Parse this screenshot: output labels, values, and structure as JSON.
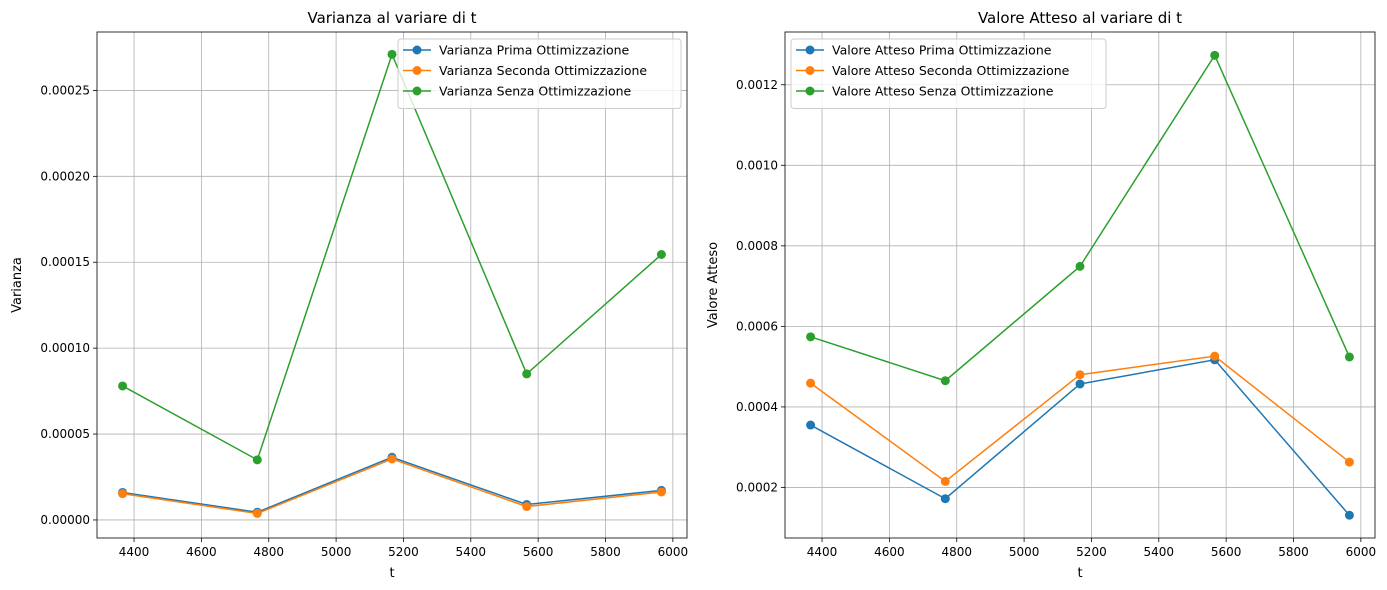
{
  "colors": {
    "series_1": "#1f77b4",
    "series_2": "#ff7f0e",
    "series_3": "#2ca02c",
    "grid": "#b0b0b0",
    "axes": "#000000"
  },
  "chart_data": [
    {
      "type": "line",
      "title": "Varianza al variare di t",
      "xlabel": "t",
      "ylabel": "Varianza",
      "x": [
        4366,
        4766,
        5166,
        5566,
        5966
      ],
      "xlim": [
        4290,
        6042
      ],
      "ylim": [
        -1.05e-05,
        0.000284
      ],
      "xticks": [
        4400,
        4600,
        4800,
        5000,
        5200,
        5400,
        5600,
        5800,
        6000
      ],
      "xtick_labels": [
        "4400",
        "4600",
        "4800",
        "5000",
        "5200",
        "5400",
        "5600",
        "5800",
        "6000"
      ],
      "yticks": [
        0,
        5e-05,
        0.0001,
        0.00015,
        0.0002,
        0.00025
      ],
      "ytick_labels": [
        "0.00000",
        "0.00005",
        "0.00010",
        "0.00015",
        "0.00020",
        "0.00025"
      ],
      "grid": true,
      "legend_position": "top-right",
      "series": [
        {
          "name": "Varianza Prima Ottimizzazione",
          "values": [
            1.6e-05,
            4.5e-06,
            3.65e-05,
            9e-06,
            1.72e-05
          ]
        },
        {
          "name": "Varianza Seconda Ottimizzazione",
          "values": [
            1.53e-05,
            3.8e-06,
            3.55e-05,
            7.8e-06,
            1.63e-05
          ]
        },
        {
          "name": "Varianza Senza Ottimizzazione",
          "values": [
            7.8e-05,
            3.5e-05,
            0.000271,
            8.5e-05,
            0.0001545
          ]
        }
      ]
    },
    {
      "type": "line",
      "title": "Valore Atteso al variare di t",
      "xlabel": "t",
      "ylabel": "Valore Atteso",
      "x": [
        4366,
        4766,
        5166,
        5566,
        5966
      ],
      "xlim": [
        4290,
        6042
      ],
      "ylim": [
        7.45e-05,
        0.001331
      ],
      "xticks": [
        4400,
        4600,
        4800,
        5000,
        5200,
        5400,
        5600,
        5800,
        6000
      ],
      "xtick_labels": [
        "4400",
        "4600",
        "4800",
        "5000",
        "5200",
        "5400",
        "5600",
        "5800",
        "6000"
      ],
      "yticks": [
        0.0002,
        0.0004,
        0.0006,
        0.0008,
        0.001,
        0.0012
      ],
      "ytick_labels": [
        "0.0002",
        "0.0004",
        "0.0006",
        "0.0008",
        "0.0010",
        "0.0012"
      ],
      "grid": true,
      "legend_position": "top-left",
      "series": [
        {
          "name": "Valore Atteso Prima Ottimizzazione",
          "values": [
            0.000355,
            0.000172,
            0.000457,
            0.000517,
            0.000131
          ]
        },
        {
          "name": "Valore Atteso Seconda Ottimizzazione",
          "values": [
            0.000459,
            0.000215,
            0.00048,
            0.000526,
            0.000263
          ]
        },
        {
          "name": "Valore Atteso Senza Ottimizzazione",
          "values": [
            0.000574,
            0.000465,
            0.000749,
            0.001273,
            0.000524
          ]
        }
      ]
    }
  ]
}
